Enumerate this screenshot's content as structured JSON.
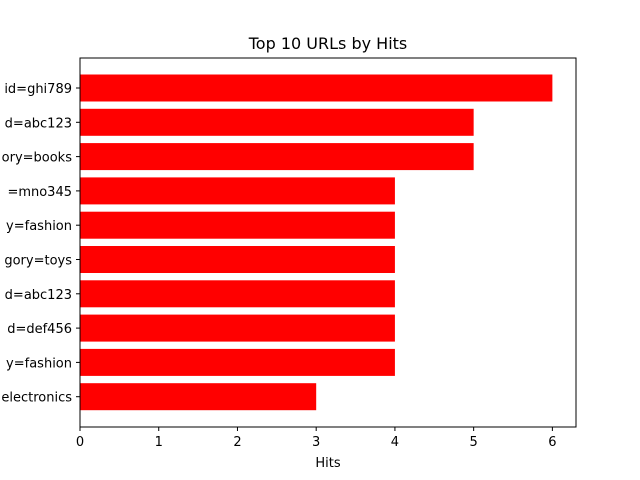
{
  "chart_data": {
    "type": "bar",
    "orientation": "horizontal",
    "title": "Top 10 URLs by Hits",
    "xlabel": "Hits",
    "ylabel": "",
    "xlim": [
      0,
      6.3
    ],
    "xticks": [
      0,
      1,
      2,
      3,
      4,
      5,
      6
    ],
    "grid": false,
    "categories": [
      "id=ghi789",
      "d=abc123",
      "ory=books",
      "=mno345",
      "y=fashion",
      "gory=toys",
      "d=abc123",
      "d=def456",
      "y=fashion",
      "electronics"
    ],
    "values": [
      6,
      5,
      5,
      4,
      4,
      4,
      4,
      4,
      4,
      3
    ],
    "color": "#ff0000"
  }
}
